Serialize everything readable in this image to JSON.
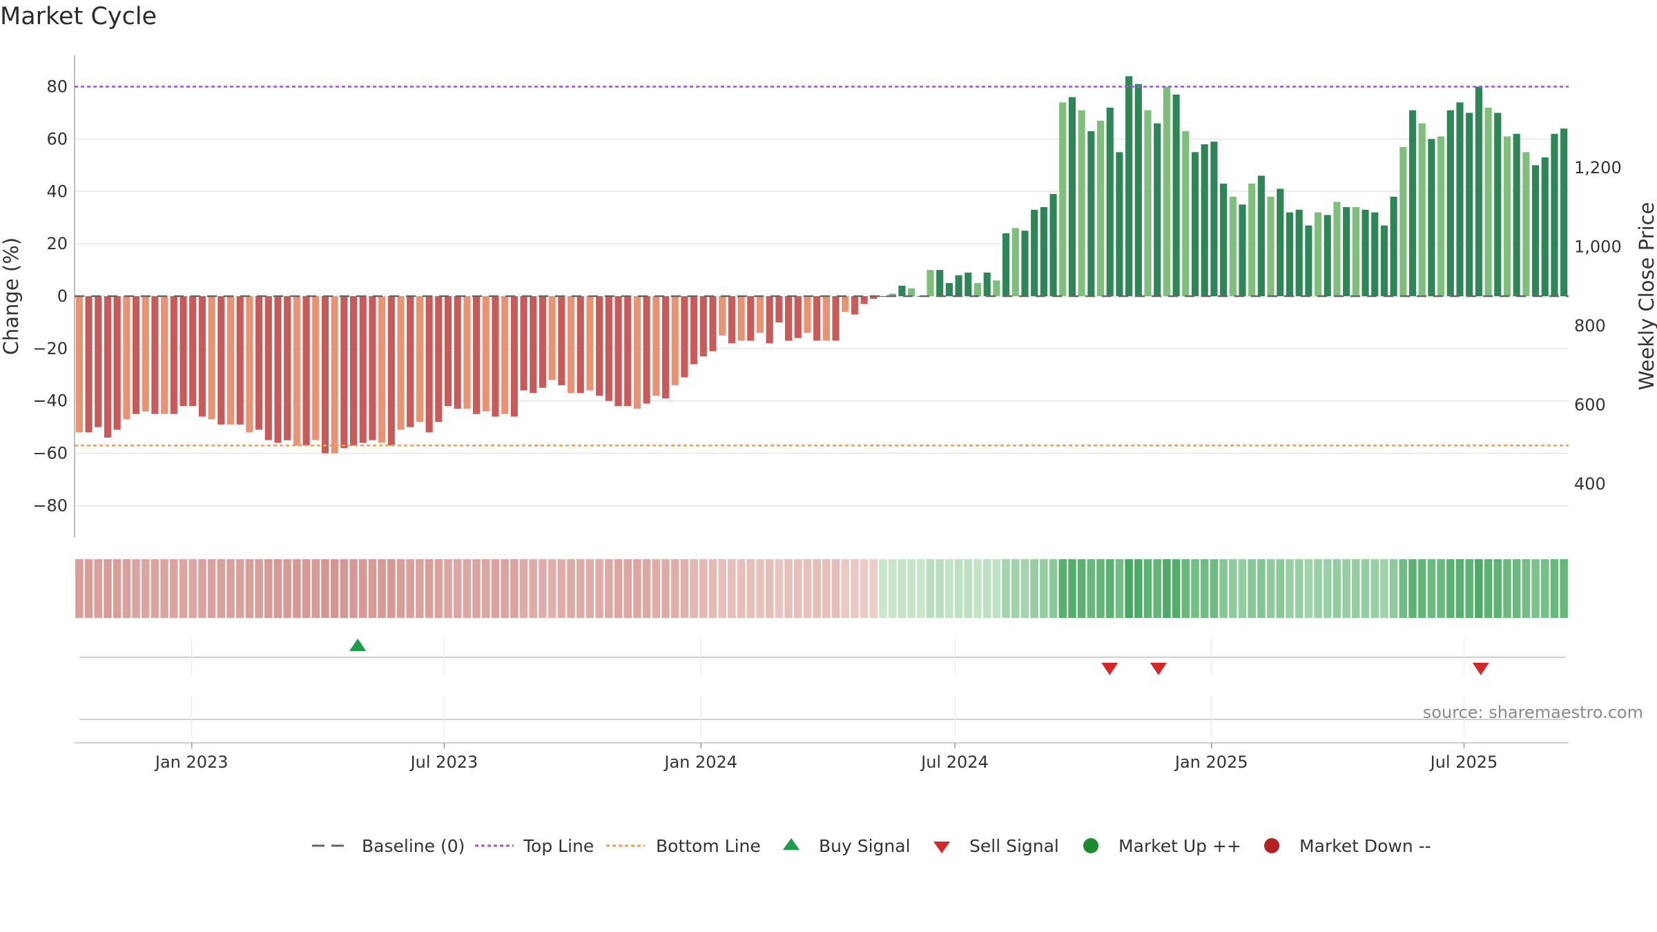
{
  "title": "Market Cycle",
  "source": "source: sharemaestro.com",
  "chart_data": {
    "type": "bar",
    "title": "Market Cycle",
    "ylabel": "Change (%)",
    "ylabel_right": "Weekly Close Price",
    "ylim": [
      -92,
      92
    ],
    "yticks": [
      80,
      60,
      40,
      20,
      0,
      -20,
      -40,
      -60,
      -80
    ],
    "yticks_right": [
      "1,200",
      "1,000",
      "800",
      "600",
      "400"
    ],
    "yticks_right_values": [
      1200,
      1000,
      800,
      600,
      400
    ],
    "y_right_range": [
      265,
      1485
    ],
    "top_line": 80,
    "bottom_line": -57,
    "x_range": [
      "2022-10-09",
      "2025-09-14"
    ],
    "x_ticks": [
      {
        "label": "Jan 2023",
        "date": "2023-01-01"
      },
      {
        "label": "Jul 2023",
        "date": "2023-07-01"
      },
      {
        "label": "Jan 2024",
        "date": "2024-01-01"
      },
      {
        "label": "Jul 2024",
        "date": "2024-07-01"
      },
      {
        "label": "Jan 2025",
        "date": "2025-01-01"
      },
      {
        "label": "Jul 2025",
        "date": "2025-07-01"
      }
    ],
    "series": [
      {
        "values": [
          -52,
          -52,
          -50,
          -54,
          -51,
          -47,
          -45,
          -44,
          -45,
          -45,
          -45,
          -42,
          -42,
          -46,
          -47,
          -49,
          -49,
          -49,
          -52,
          -51,
          -55,
          -56,
          -55,
          -57,
          -57,
          -55,
          -60,
          -60,
          -58,
          -57,
          -56,
          -55,
          -56,
          -57,
          -51,
          -50,
          -48,
          -52,
          -48,
          -42,
          -43,
          -43,
          -45,
          -44,
          -46,
          -45,
          -46,
          -36,
          -37,
          -35,
          -32,
          -34,
          -37,
          -37,
          -36,
          -38,
          -40,
          -42,
          -42,
          -43,
          -41,
          -38,
          -39,
          -34,
          -31,
          -26,
          -23,
          -21,
          -15,
          -18,
          -17,
          -17,
          -14,
          -18,
          -10,
          -17,
          -16,
          -14,
          -17,
          -17,
          -17,
          -6,
          -7,
          -3,
          -1,
          0,
          1,
          4,
          3,
          0,
          10,
          10,
          5,
          8,
          9,
          5,
          9,
          6,
          24,
          26,
          25,
          33,
          34,
          39,
          74,
          76,
          71,
          63,
          67,
          72,
          55,
          84,
          81,
          71,
          66,
          80,
          77,
          63,
          55,
          58,
          59,
          43,
          38,
          35,
          43,
          46,
          38,
          41,
          32,
          33,
          27,
          32,
          31,
          36,
          34,
          34,
          33,
          32,
          27,
          38,
          57,
          71,
          66,
          60,
          61,
          71,
          74,
          70,
          80,
          72,
          70,
          61,
          62,
          55,
          50,
          53,
          62,
          64
        ]
      }
    ],
    "signals": [
      {
        "type": "buy",
        "date": "2023-04-30"
      },
      {
        "type": "sell",
        "date": "2024-10-20"
      },
      {
        "type": "sell",
        "date": "2024-11-24"
      },
      {
        "type": "sell",
        "date": "2025-07-13"
      }
    ],
    "legend": [
      "Baseline (0)",
      "Top Line",
      "Bottom Line",
      "Buy Signal",
      "Sell Signal",
      "Market Up ++",
      "Market Down --"
    ],
    "legend_position": "bottom-center",
    "colors": {
      "top_line": "#9b59d0",
      "bottom_line": "#e8a060",
      "baseline": "#666666",
      "buy": "#1a9e4a",
      "sell": "#d62728",
      "market_up": "#1e8a2e",
      "market_down": "#b22222",
      "neg_dark": "#c85a5a",
      "neg_light": "#e89474",
      "pos_dark": "#2e8555",
      "pos_light": "#7fbf7b"
    }
  }
}
